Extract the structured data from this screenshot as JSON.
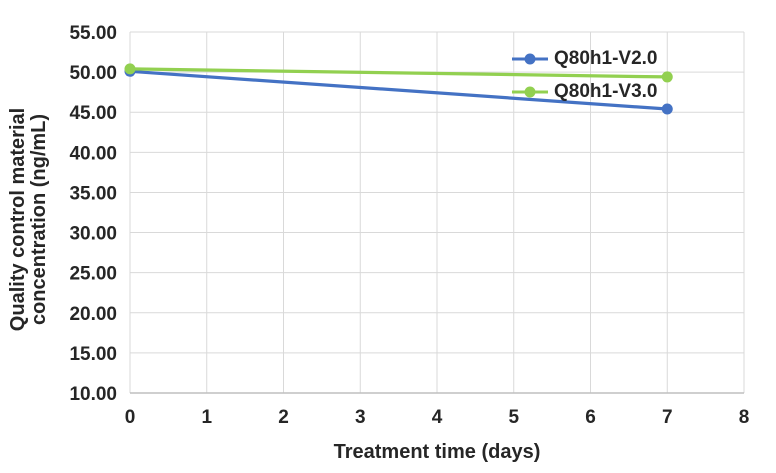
{
  "chart_data": {
    "type": "line",
    "title": "",
    "xlabel": "Treatment time (days)",
    "ylabel": "Quality control material concentration (ng/mL)",
    "ylabel_lines": [
      "Quality control material",
      "concentration (ng/mL)"
    ],
    "x": [
      0,
      7
    ],
    "series": [
      {
        "name": "Q80h1-V2.0",
        "color": "#4472C4",
        "values": [
          50.1,
          45.4
        ]
      },
      {
        "name": "Q80h1-V3.0",
        "color": "#92D050",
        "values": [
          50.4,
          49.4
        ]
      }
    ],
    "xlim": [
      0,
      8
    ],
    "ylim": [
      10,
      55
    ],
    "x_tick_values": [
      0,
      1,
      2,
      3,
      4,
      5,
      6,
      7,
      8
    ],
    "x_tick_labels": [
      "0",
      "1",
      "2",
      "3",
      "4",
      "5",
      "6",
      "7",
      "8"
    ],
    "y_tick_values": [
      55,
      50,
      45,
      40,
      35,
      30,
      25,
      20,
      15,
      10
    ],
    "y_tick_labels": [
      "55.00",
      "50.00",
      "45.00",
      "40.00",
      "35.00",
      "30.00",
      "25.00",
      "20.00",
      "15.00",
      "10.00"
    ],
    "grid": true,
    "legend_position": "inside-top-right",
    "colors": {
      "gridline": "#D9D9D9",
      "axis_line": "#BFBFBF",
      "text": "#262626",
      "background": "#FFFFFF"
    }
  }
}
